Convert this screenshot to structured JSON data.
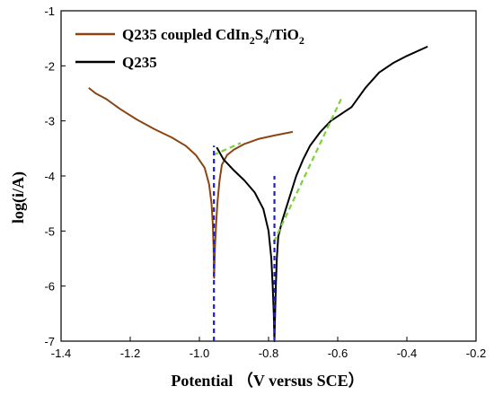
{
  "chart_data": {
    "type": "line",
    "xlabel": "Potential  （V versus SCE）",
    "ylabel": "log(i/A)",
    "xlim": [
      -1.4,
      -0.2
    ],
    "ylim": [
      -7,
      -1
    ],
    "xticks": [
      -1.4,
      -1.2,
      -1.0,
      -0.8,
      -0.6,
      -0.4,
      -0.2
    ],
    "yticks": [
      -1,
      -2,
      -3,
      -4,
      -5,
      -6,
      -7
    ],
    "xtick_labels": [
      "-1.4",
      "-1.2",
      "-1.0",
      "-0.8",
      "-0.6",
      "-0.4",
      "-0.2"
    ],
    "ytick_labels": [
      "-1",
      "-2",
      "-3",
      "-4",
      "-5",
      "-6",
      "-7"
    ],
    "legend_position": "top-left",
    "series": [
      {
        "name": "Q235 coupled CdIn2S4/TiO2",
        "name_parts": {
          "a": "Q235 coupled CdIn",
          "s1": "2",
          "b": "S",
          "s2": "4",
          "c": "/TiO",
          "s3": "2"
        },
        "color": "#8B4513",
        "points": [
          [
            -1.32,
            -2.4
          ],
          [
            -1.3,
            -2.5
          ],
          [
            -1.27,
            -2.6
          ],
          [
            -1.23,
            -2.78
          ],
          [
            -1.18,
            -2.98
          ],
          [
            -1.13,
            -3.15
          ],
          [
            -1.08,
            -3.3
          ],
          [
            -1.04,
            -3.45
          ],
          [
            -1.01,
            -3.62
          ],
          [
            -0.985,
            -3.85
          ],
          [
            -0.972,
            -4.15
          ],
          [
            -0.965,
            -4.5
          ],
          [
            -0.961,
            -4.9
          ],
          [
            -0.959,
            -5.3
          ],
          [
            -0.958,
            -5.7
          ],
          [
            -0.9575,
            -5.85
          ],
          [
            -0.957,
            -5.7
          ],
          [
            -0.955,
            -5.3
          ],
          [
            -0.952,
            -4.9
          ],
          [
            -0.948,
            -4.5
          ],
          [
            -0.942,
            -4.1
          ],
          [
            -0.935,
            -3.8
          ],
          [
            -0.92,
            -3.62
          ],
          [
            -0.9,
            -3.52
          ],
          [
            -0.87,
            -3.42
          ],
          [
            -0.83,
            -3.33
          ],
          [
            -0.78,
            -3.26
          ],
          [
            -0.73,
            -3.2
          ]
        ]
      },
      {
        "name": "Q235",
        "color": "#000000",
        "points": [
          [
            -0.95,
            -3.48
          ],
          [
            -0.93,
            -3.7
          ],
          [
            -0.9,
            -3.9
          ],
          [
            -0.87,
            -4.08
          ],
          [
            -0.84,
            -4.3
          ],
          [
            -0.815,
            -4.6
          ],
          [
            -0.8,
            -5.0
          ],
          [
            -0.792,
            -5.5
          ],
          [
            -0.788,
            -6.0
          ],
          [
            -0.785,
            -6.5
          ],
          [
            -0.783,
            -7.0
          ],
          [
            -0.781,
            -6.5
          ],
          [
            -0.779,
            -6.0
          ],
          [
            -0.776,
            -5.5
          ],
          [
            -0.772,
            -5.1
          ],
          [
            -0.76,
            -4.8
          ],
          [
            -0.74,
            -4.4
          ],
          [
            -0.72,
            -4.0
          ],
          [
            -0.7,
            -3.7
          ],
          [
            -0.68,
            -3.45
          ],
          [
            -0.65,
            -3.2
          ],
          [
            -0.62,
            -3.0
          ],
          [
            -0.56,
            -2.75
          ],
          [
            -0.52,
            -2.4
          ],
          [
            -0.48,
            -2.12
          ],
          [
            -0.44,
            -1.95
          ],
          [
            -0.4,
            -1.82
          ],
          [
            -0.34,
            -1.65
          ]
        ]
      }
    ],
    "tafel_lines": {
      "color": "#7FD13B",
      "segments": [
        [
          [
            -0.96,
            -3.62
          ],
          [
            -0.88,
            -3.4
          ]
        ],
        [
          [
            -0.785,
            -5.2
          ],
          [
            -0.59,
            -2.6
          ]
        ]
      ]
    },
    "corrosion_potential_lines": {
      "color": "#1F1FCC",
      "segments": [
        [
          [
            -0.958,
            -7.0
          ],
          [
            -0.958,
            -3.45
          ]
        ],
        [
          [
            -0.783,
            -7.0
          ],
          [
            -0.783,
            -4.0
          ]
        ]
      ]
    }
  }
}
